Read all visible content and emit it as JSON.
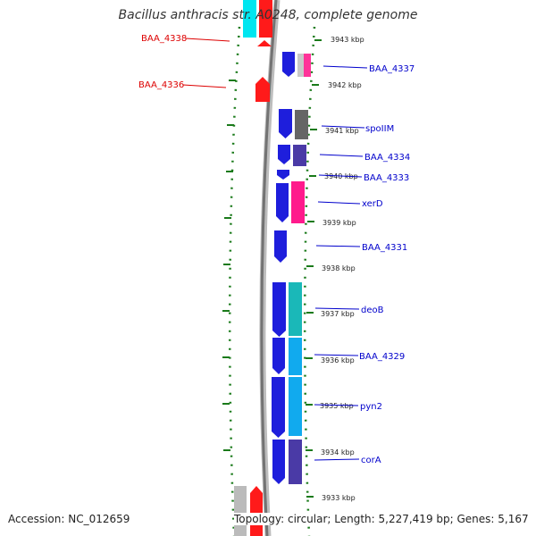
{
  "title": "Bacillus anthracis str. A0248, complete genome",
  "footer": {
    "accession": "Accession: NC_012659",
    "summary": "Topology: circular; Length: 5,227,419 bp; Genes: 5,167"
  },
  "colors": {
    "backbone": "#808080",
    "tick_dots": "#1a7a1a",
    "forward_cds": "#0000ee",
    "reverse_cds": "#ff0000",
    "label_forward": "#0000cc",
    "label_reverse": "#dd0000"
  },
  "scale_ticks": [
    {
      "kbp": 3943,
      "label": "3943 kbp"
    },
    {
      "kbp": 3942,
      "label": "3942 kbp"
    },
    {
      "kbp": 3941,
      "label": "3941 kbp"
    },
    {
      "kbp": 3940,
      "label": "3940 kbp"
    },
    {
      "kbp": 3939,
      "label": "3939 kbp"
    },
    {
      "kbp": 3938,
      "label": "3938 kbp"
    },
    {
      "kbp": 3937,
      "label": "3937 kbp"
    },
    {
      "kbp": 3936,
      "label": "3936 kbp"
    },
    {
      "kbp": 3935,
      "label": "3935 kbp"
    },
    {
      "kbp": 3934,
      "label": "3934 kbp"
    },
    {
      "kbp": 3933,
      "label": "3933 kbp"
    }
  ],
  "gene_labels": [
    {
      "text": "BAA_4338",
      "strand": "reverse"
    },
    {
      "text": "BAA_4336",
      "strand": "reverse"
    },
    {
      "text": "BAA_4337",
      "strand": "forward"
    },
    {
      "text": "spoIIM",
      "strand": "forward"
    },
    {
      "text": "BAA_4334",
      "strand": "forward"
    },
    {
      "text": "BAA_4333",
      "strand": "forward"
    },
    {
      "text": "xerD",
      "strand": "forward"
    },
    {
      "text": "BAA_4331",
      "strand": "forward"
    },
    {
      "text": "deoB",
      "strand": "forward"
    },
    {
      "text": "BAA_4329",
      "strand": "forward"
    },
    {
      "text": "pyn2",
      "strand": "forward"
    },
    {
      "text": "corA",
      "strand": "forward"
    }
  ]
}
